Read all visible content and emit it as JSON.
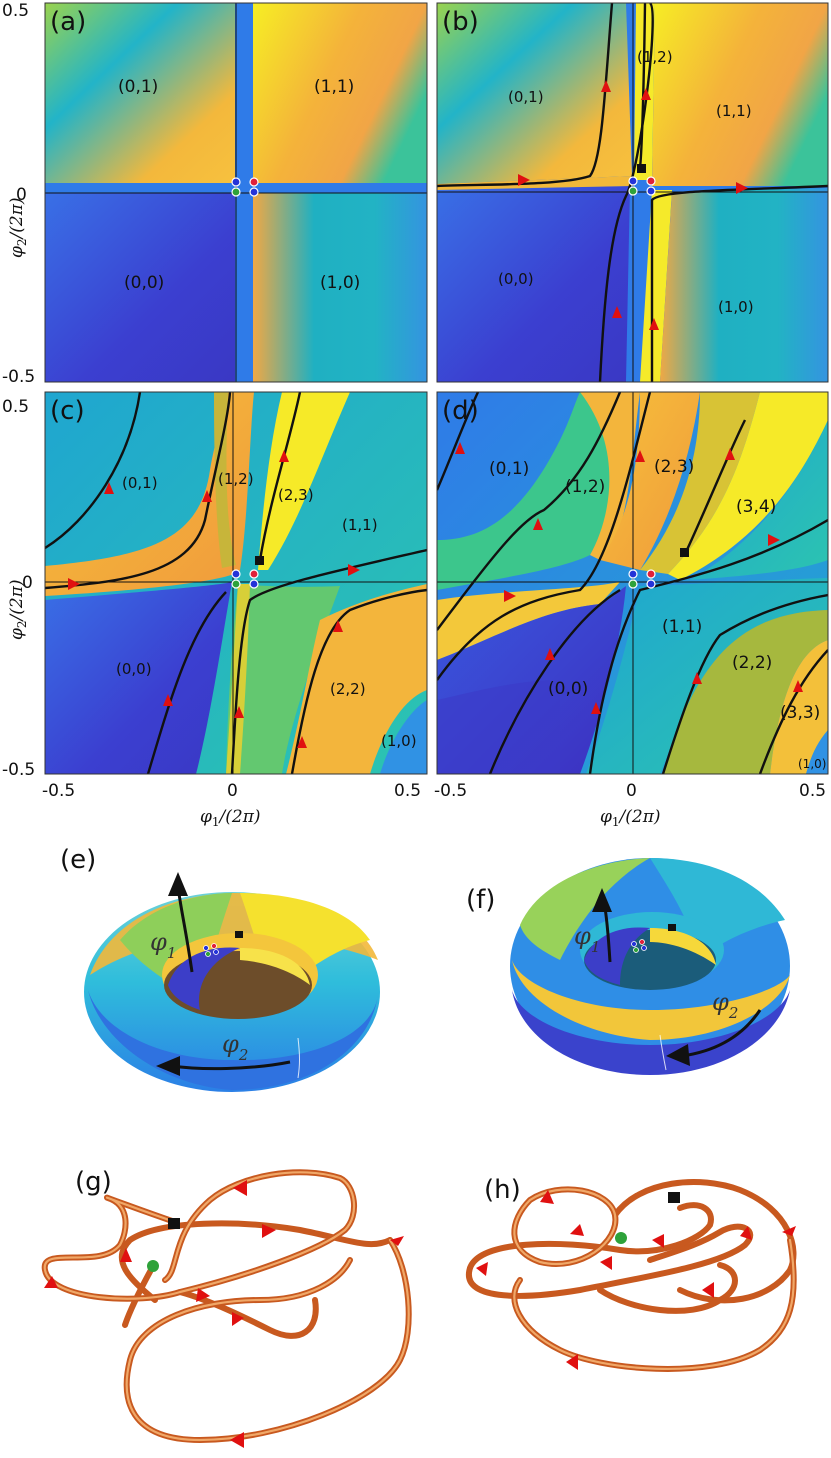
{
  "panels": {
    "a": {
      "label": "(a)",
      "regions": [
        "(0,1)",
        "(1,1)",
        "(0,0)",
        "(1,0)"
      ]
    },
    "b": {
      "label": "(b)",
      "regions": [
        "(1,2)",
        "(0,1)",
        "(1,1)",
        "(0,0)",
        "(1,0)"
      ]
    },
    "c": {
      "label": "(c)",
      "regions": [
        "(0,1)",
        "(1,2)",
        "(2,3)",
        "(1,1)",
        "(0,0)",
        "(2,2)",
        "(1,0)"
      ]
    },
    "d": {
      "label": "(d)",
      "regions": [
        "(0,1)",
        "(1,2)",
        "(2,3)",
        "(3,4)",
        "(1,1)",
        "(0,0)",
        "(2,2)",
        "(3,3)",
        "(1,0)"
      ]
    },
    "e": {
      "label": "(e)",
      "phi1": "φ",
      "phi1_sub": "1",
      "phi2": "φ",
      "phi2_sub": "2"
    },
    "f": {
      "label": "(f)",
      "phi1": "φ",
      "phi1_sub": "1",
      "phi2": "φ",
      "phi2_sub": "2"
    },
    "g": {
      "label": "(g)"
    },
    "h": {
      "label": "(h)"
    }
  },
  "axes": {
    "y_ticks": [
      "0.5",
      "0",
      "-0.5"
    ],
    "x_ticks": [
      "-0.5",
      "0",
      "0.5"
    ],
    "y_label": "φ",
    "y_label_sub": "2",
    "y_label_rest": "/(2π)",
    "x_label": "φ",
    "x_label_sub": "1",
    "x_label_rest": "/(2π)"
  },
  "colors": {
    "deep_blue": "#3b3fd0",
    "blue": "#2f7be8",
    "cyan": "#1fb2c4",
    "green": "#5ec96e",
    "yellow": "#f5e62a",
    "orange": "#f2a53a",
    "arrow_red": "#e01010",
    "tube_orange": "#d0652a"
  }
}
